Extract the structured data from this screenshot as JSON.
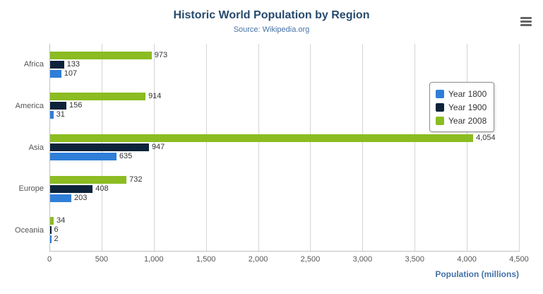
{
  "chart_data": {
    "type": "bar",
    "orientation": "horizontal",
    "title": "Historic World Population by Region",
    "subtitle": "Source: Wikipedia.org",
    "categories": [
      "Africa",
      "America",
      "Asia",
      "Europe",
      "Oceania"
    ],
    "series": [
      {
        "name": "Year 1800",
        "color": "#2f7ed8",
        "values": [
          107,
          31,
          635,
          203,
          2
        ]
      },
      {
        "name": "Year 1900",
        "color": "#0d233a",
        "values": [
          133,
          156,
          947,
          408,
          6
        ]
      },
      {
        "name": "Year 2008",
        "color": "#8bbc21",
        "values": [
          973,
          914,
          4054,
          732,
          34
        ]
      }
    ],
    "series_display_order_top_to_bottom": [
      "Year 2008",
      "Year 1900",
      "Year 1800"
    ],
    "data_labels": [
      [
        "107",
        "31",
        "635",
        "203",
        "2"
      ],
      [
        "133",
        "156",
        "947",
        "408",
        "6"
      ],
      [
        "973",
        "914",
        "4,054",
        "732",
        "34"
      ]
    ],
    "xlabel": "Population (millions)",
    "xlim": [
      0,
      4500
    ],
    "xtick_values": [
      0,
      500,
      1000,
      1500,
      2000,
      2500,
      3000,
      3500,
      4000,
      4500
    ],
    "xtick_labels": [
      "0",
      "500",
      "1,000",
      "1,500",
      "2,000",
      "2,500",
      "3,000",
      "3,500",
      "4,000",
      "4,500"
    ],
    "grid": true,
    "legend": {
      "position": "right",
      "entries": [
        "Year 1800",
        "Year 1900",
        "Year 2008"
      ]
    }
  },
  "icons": {
    "context_menu": "hamburger-icon"
  },
  "colors": {
    "title": "#274b6d",
    "subtitle": "#4572a7",
    "axis_title": "#4572a7",
    "tick_label": "#555555",
    "gridline": "#d4d4d4"
  }
}
